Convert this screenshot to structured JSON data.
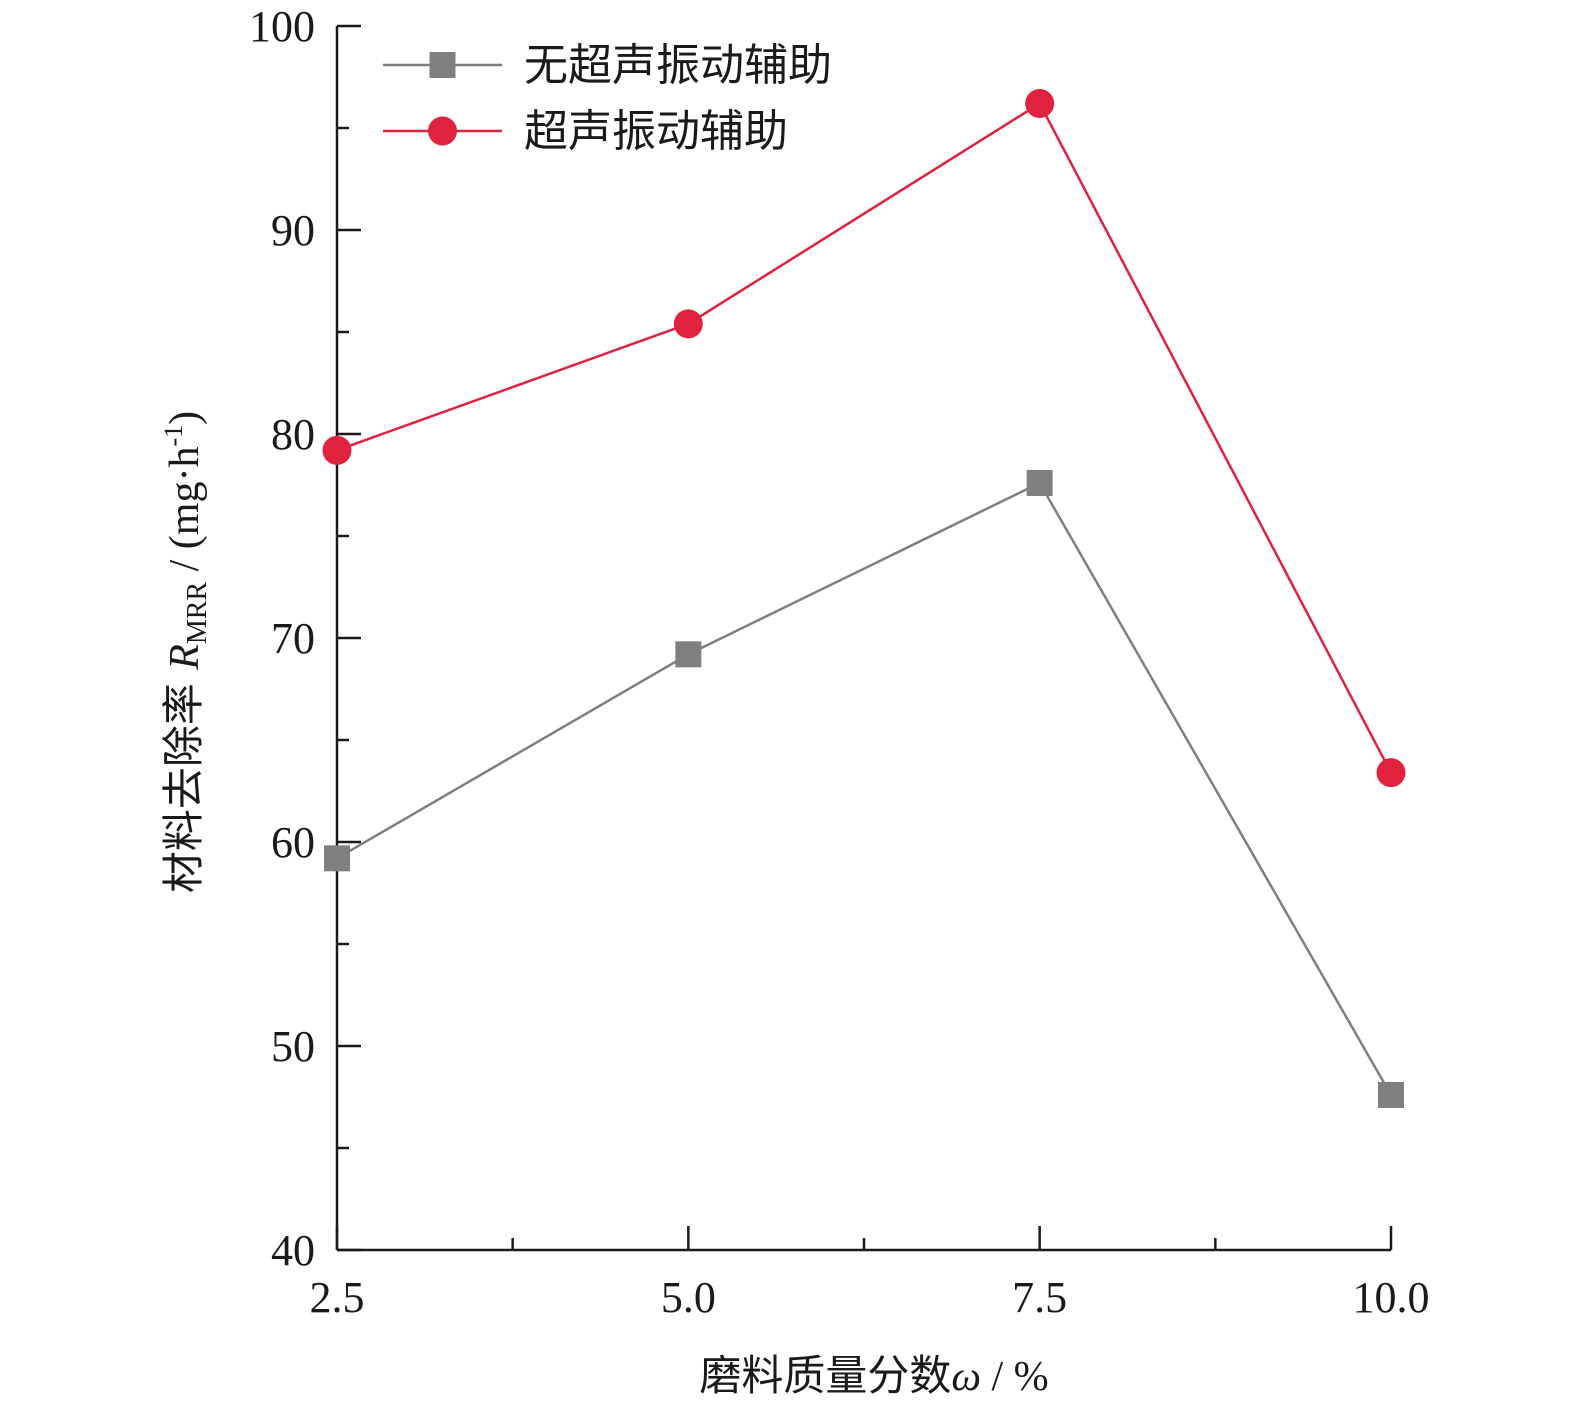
{
  "chart_data": {
    "type": "line",
    "x": [
      2.5,
      5.0,
      7.5,
      10.0
    ],
    "x_tick_labels": [
      "2.5",
      "5.0",
      "7.5",
      "10.0"
    ],
    "y_tick_labels": [
      "40",
      "50",
      "60",
      "70",
      "80",
      "90",
      "100"
    ],
    "xlim": [
      2.5,
      10.0
    ],
    "ylim": [
      40,
      100
    ],
    "x_minor_ticks": [
      3.75,
      6.25,
      8.75
    ],
    "y_minor_ticks": [
      45,
      55,
      65,
      75,
      85,
      95
    ],
    "xlabel": {
      "text": "磨料质量分数",
      "symbol": "ω",
      "unit": " / %"
    },
    "ylabel": {
      "text": "材料去除率 ",
      "symbol": "R",
      "subscript": "MRR",
      "unit_prefix": " / (mg·h",
      "superscript": "-1",
      "unit_suffix": ")"
    },
    "grid": false,
    "legend_position": "top-left",
    "series": [
      {
        "name": "无超声振动辅助",
        "values": [
          59.2,
          69.2,
          77.6,
          47.6
        ],
        "color": "#7f7f7f",
        "marker": "square"
      },
      {
        "name": "超声振动辅助",
        "values": [
          79.2,
          85.4,
          96.2,
          63.4
        ],
        "color": "#e0223f",
        "marker": "circle"
      }
    ]
  }
}
